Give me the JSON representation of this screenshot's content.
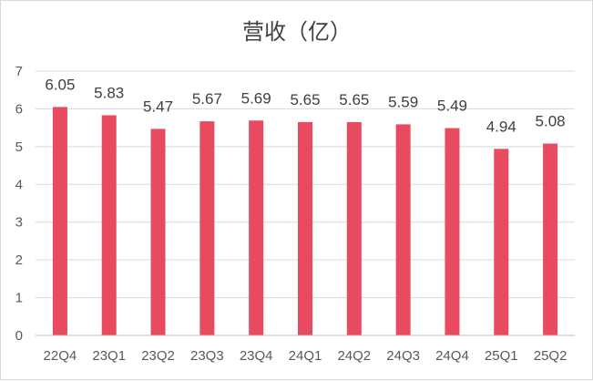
{
  "chart_data": {
    "type": "bar",
    "title": "营收（亿）",
    "categories": [
      "22Q4",
      "23Q1",
      "23Q2",
      "23Q3",
      "23Q4",
      "24Q1",
      "24Q2",
      "24Q3",
      "24Q4",
      "25Q1",
      "25Q2"
    ],
    "values": [
      6.05,
      5.83,
      5.47,
      5.67,
      5.69,
      5.65,
      5.65,
      5.59,
      5.49,
      4.94,
      5.08
    ],
    "data_labels": [
      "6.05",
      "5.83",
      "5.47",
      "5.67",
      "5.69",
      "5.65",
      "5.65",
      "5.59",
      "5.49",
      "4.94",
      "5.08"
    ],
    "xlabel": "",
    "ylabel": "",
    "ylim": [
      0,
      7
    ],
    "yticks": [
      "0",
      "1",
      "2",
      "3",
      "4",
      "5",
      "6",
      "7"
    ],
    "grid": true,
    "legend": "none",
    "bar_color": "#e84a5f"
  }
}
